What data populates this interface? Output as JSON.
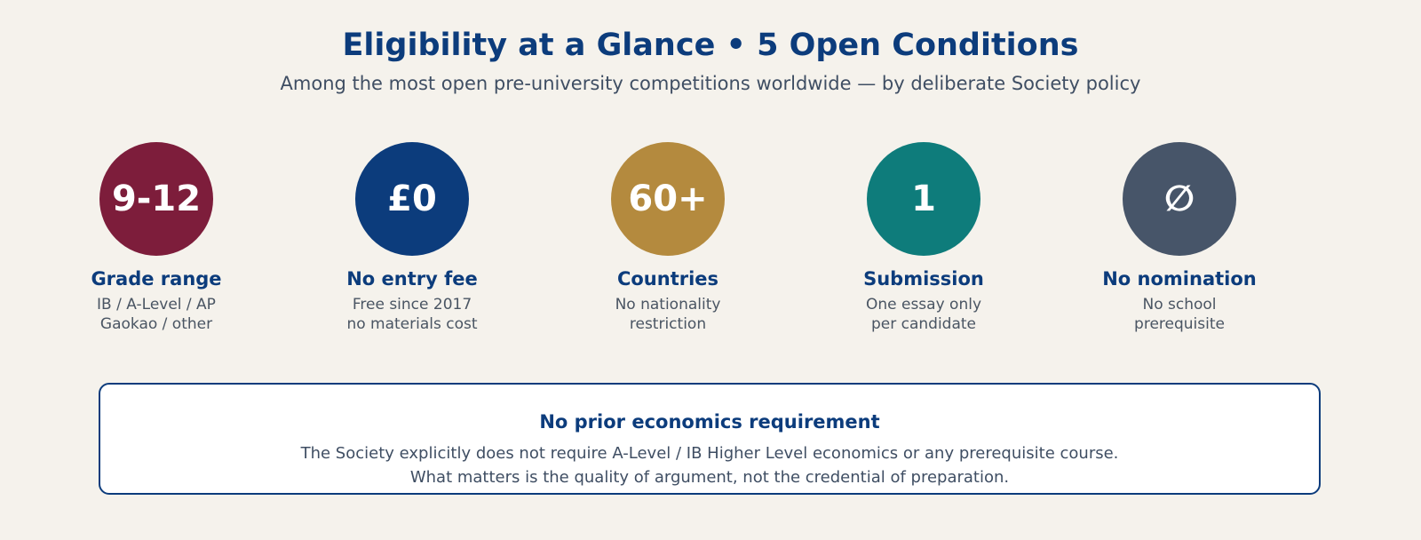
{
  "title": "Eligibility at a Glance • 5 Open Conditions",
  "subtitle": "Among the most open pre-university competitions worldwide — by deliberate Society policy",
  "conditions": [
    {
      "value": "9-12",
      "label": "Grade range",
      "desc1": "IB / A-Level / AP",
      "desc2": "Gaokao / other",
      "color": "#7d1d3b"
    },
    {
      "value": "£0",
      "label": "No entry fee",
      "desc1": "Free since 2017",
      "desc2": "no materials cost",
      "color": "#0c3c7c"
    },
    {
      "value": "60+",
      "label": "Countries",
      "desc1": "No nationality",
      "desc2": "restriction",
      "color": "#b48a3e"
    },
    {
      "value": "1",
      "label": "Submission",
      "desc1": "One essay only",
      "desc2": "per candidate",
      "color": "#0e7c7b"
    },
    {
      "value": "∅",
      "label": "No nomination",
      "desc1": "No school",
      "desc2": "prerequisite",
      "color": "#475569"
    }
  ],
  "note": {
    "title": "No prior economics requirement",
    "line1": "The Society explicitly does not require A-Level / IB Higher Level economics or any prerequisite course.",
    "line2": "What matters is the quality of argument, not the credential of preparation."
  }
}
